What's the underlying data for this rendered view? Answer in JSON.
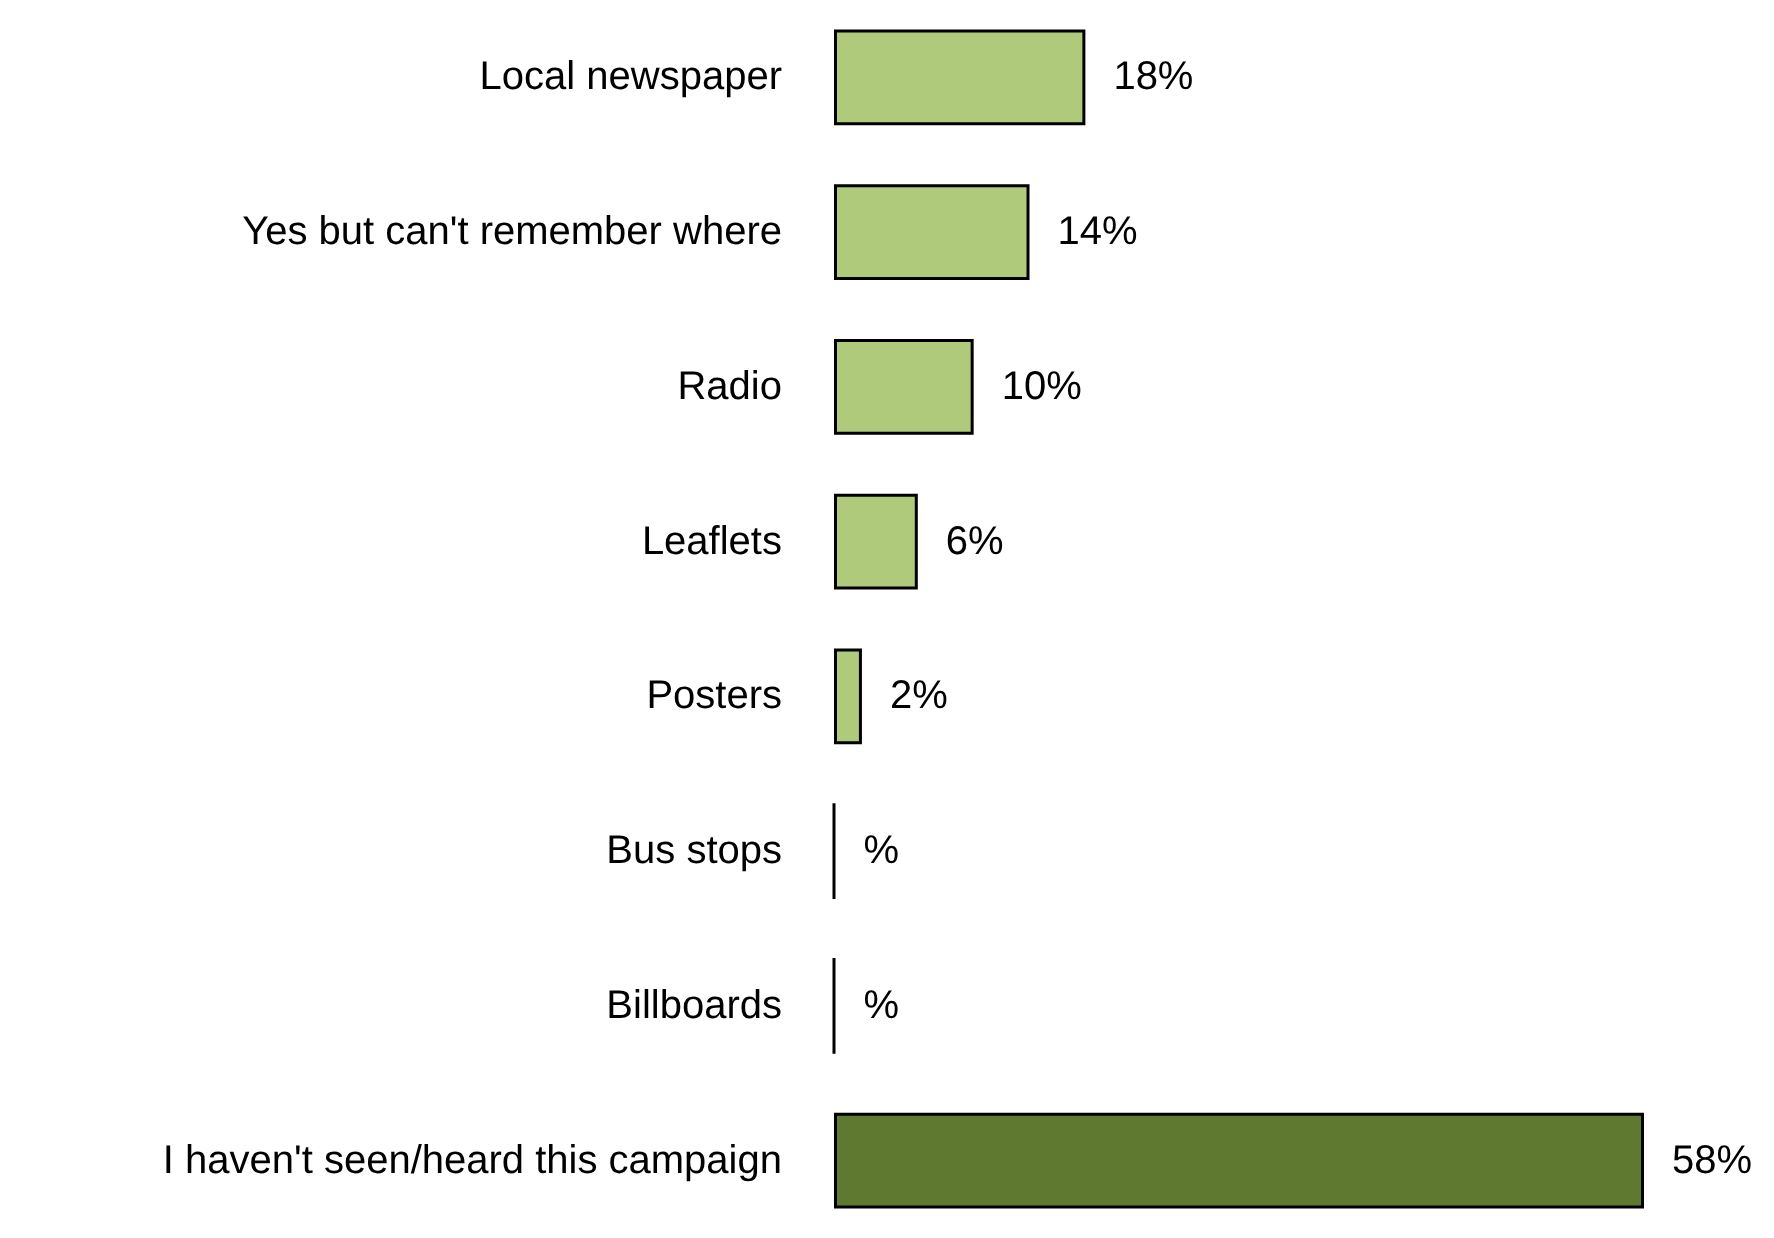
{
  "chart_data": {
    "type": "bar",
    "orientation": "horizontal",
    "categories": [
      "Local newspaper",
      "Yes but can't remember where",
      "Radio",
      "Leaflets",
      "Posters",
      "Bus stops",
      "Billboards",
      "I haven't seen/heard this campaign"
    ],
    "values": [
      18,
      14,
      10,
      6,
      2,
      0,
      0,
      58
    ],
    "colors": [
      "#afca7b",
      "#afca7b",
      "#afca7b",
      "#afca7b",
      "#afca7b",
      "#000000",
      "#000000",
      "#5f7a30"
    ],
    "value_labels": [
      "18%",
      "14%",
      "10%",
      "6%",
      "2%",
      "%",
      "%",
      "58%"
    ]
  }
}
